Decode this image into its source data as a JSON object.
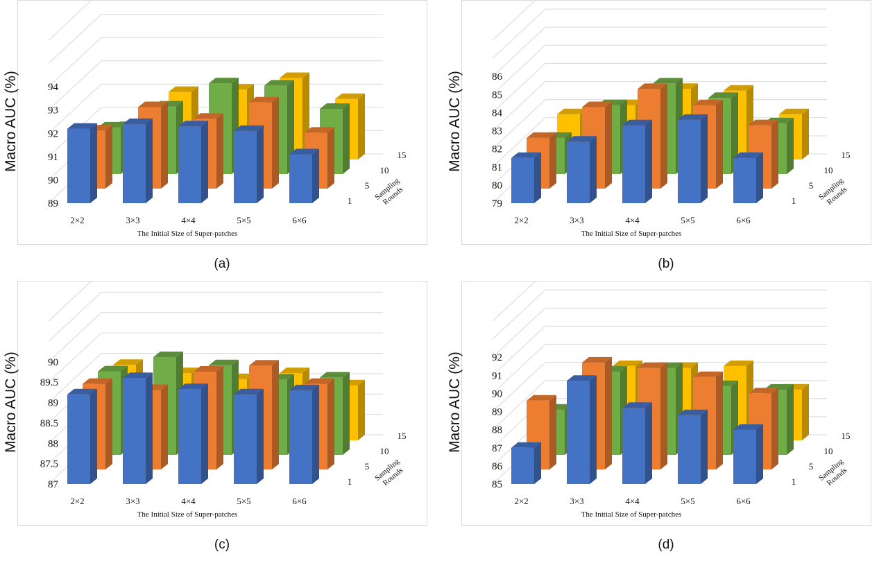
{
  "figure": {
    "panels": [
      {
        "caption": "(a)"
      },
      {
        "caption": "(b)"
      },
      {
        "caption": "(c)"
      },
      {
        "caption": "(d)"
      }
    ]
  },
  "colors": {
    "round_1": "#4472C4",
    "round_5": "#ED7D31",
    "round_10": "#70AD47",
    "round_15": "#FFC000",
    "frame": "#d9d9d9",
    "grid": "#d9d9d9"
  },
  "chart_data": [
    {
      "type": "bar",
      "panel": "(a)",
      "title": "",
      "xlabel": "The Initial Size of Super-patches",
      "ylabel": "Macro AUC (%)",
      "zlabel": [
        "Sampling",
        "Rounds"
      ],
      "categories": [
        "2×2",
        "3×3",
        "4×4",
        "5×5",
        "6×6"
      ],
      "yticks": [
        "89",
        "90",
        "91",
        "92",
        "93",
        "94"
      ],
      "ylim": [
        89,
        95
      ],
      "series": [
        {
          "label": "1",
          "values": [
            92.2,
            92.4,
            92.3,
            92.1,
            91.1
          ]
        },
        {
          "label": "5",
          "values": [
            91.5,
            92.5,
            92.0,
            92.7,
            91.4
          ]
        },
        {
          "label": "10",
          "values": [
            91.0,
            91.9,
            92.9,
            92.8,
            91.8
          ]
        },
        {
          "label": "15",
          "values": [
            90.4,
            91.9,
            92.0,
            92.5,
            91.6
          ]
        }
      ]
    },
    {
      "type": "bar",
      "panel": "(b)",
      "title": "",
      "xlabel": "The Initial Size of Super-patches",
      "ylabel": "Macro AUC (%)",
      "zlabel": [
        "Sampling",
        "Rounds"
      ],
      "categories": [
        "2×2",
        "3×3",
        "4×4",
        "5×5",
        "6×6"
      ],
      "yticks": [
        "79",
        "80",
        "81",
        "82",
        "83",
        "84",
        "85",
        "86"
      ],
      "ylim": [
        79,
        87
      ],
      "series": [
        {
          "label": "1",
          "values": [
            81.5,
            82.4,
            83.3,
            83.6,
            81.5
          ]
        },
        {
          "label": "5",
          "values": [
            81.8,
            83.5,
            84.5,
            83.6,
            82.5
          ]
        },
        {
          "label": "10",
          "values": [
            81.0,
            82.8,
            84.0,
            83.2,
            81.8
          ]
        },
        {
          "label": "15",
          "values": [
            81.5,
            82.0,
            82.9,
            82.8,
            81.5
          ]
        }
      ]
    },
    {
      "type": "bar",
      "panel": "(c)",
      "title": "",
      "xlabel": "The Initial Size of Super-patches",
      "ylabel": "Macro AUC (%)",
      "zlabel": [
        "Sampling",
        "Rounds"
      ],
      "categories": [
        "2×2",
        "3×3",
        "4×4",
        "5×5",
        "6×6"
      ],
      "yticks": [
        "87",
        "87.5",
        "88",
        "88.5",
        "89",
        "89.5",
        "90"
      ],
      "ylim": [
        87,
        90.5
      ],
      "series": [
        {
          "label": "1",
          "values": [
            89.2,
            89.6,
            89.33,
            89.2,
            89.3
          ]
        },
        {
          "label": "5",
          "values": [
            89.1,
            88.95,
            89.4,
            89.55,
            89.1
          ]
        },
        {
          "label": "10",
          "values": [
            89.05,
            89.4,
            89.2,
            88.85,
            88.9
          ]
        },
        {
          "label": "15",
          "values": [
            88.85,
            88.65,
            88.5,
            88.65,
            88.35
          ]
        }
      ]
    },
    {
      "type": "bar",
      "panel": "(d)",
      "title": "",
      "xlabel": "The Initial Size of Super-patches",
      "ylabel": "Macro AUC (%)",
      "zlabel": [
        "Sampling",
        "Rounds"
      ],
      "categories": [
        "2×2",
        "3×3",
        "4×4",
        "5×5",
        "6×6"
      ],
      "yticks": [
        "85",
        "86",
        "87",
        "88",
        "89",
        "90",
        "91",
        "92"
      ],
      "ylim": [
        85,
        93
      ],
      "series": [
        {
          "label": "1",
          "values": [
            87.0,
            90.7,
            89.2,
            88.8,
            88.0
          ]
        },
        {
          "label": "5",
          "values": [
            88.8,
            90.9,
            90.6,
            90.1,
            89.2
          ]
        },
        {
          "label": "10",
          "values": [
            87.5,
            89.6,
            89.8,
            88.8,
            88.6
          ]
        },
        {
          "label": "15",
          "values": [
            86.6,
            89.1,
            89.0,
            89.1,
            87.8
          ]
        }
      ]
    }
  ]
}
